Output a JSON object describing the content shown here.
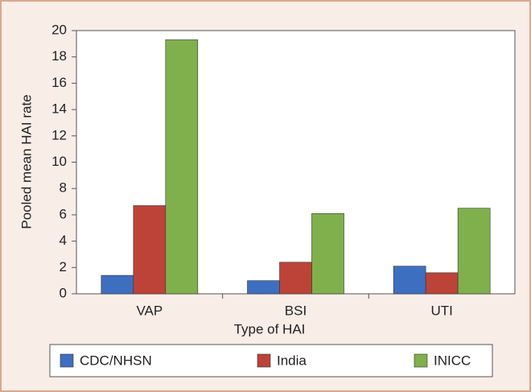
{
  "chart_data": {
    "type": "bar",
    "categories": [
      "VAP",
      "BSI",
      "UTI"
    ],
    "series": [
      {
        "name": "CDC/NHSN",
        "color": "#3d6fc1",
        "values": [
          1.4,
          1.0,
          2.1
        ]
      },
      {
        "name": "India",
        "color": "#bd4339",
        "values": [
          6.7,
          2.4,
          1.6
        ]
      },
      {
        "name": "INICC",
        "color": "#80b04c",
        "values": [
          19.3,
          6.1,
          6.5
        ]
      }
    ],
    "xlabel": "Type of HAI",
    "ylabel": "Pooled mean HAI rate",
    "ylim": [
      0,
      20
    ],
    "yticks": [
      0,
      2,
      4,
      6,
      8,
      10,
      12,
      14,
      16,
      18,
      20
    ],
    "legend": "bottom"
  }
}
